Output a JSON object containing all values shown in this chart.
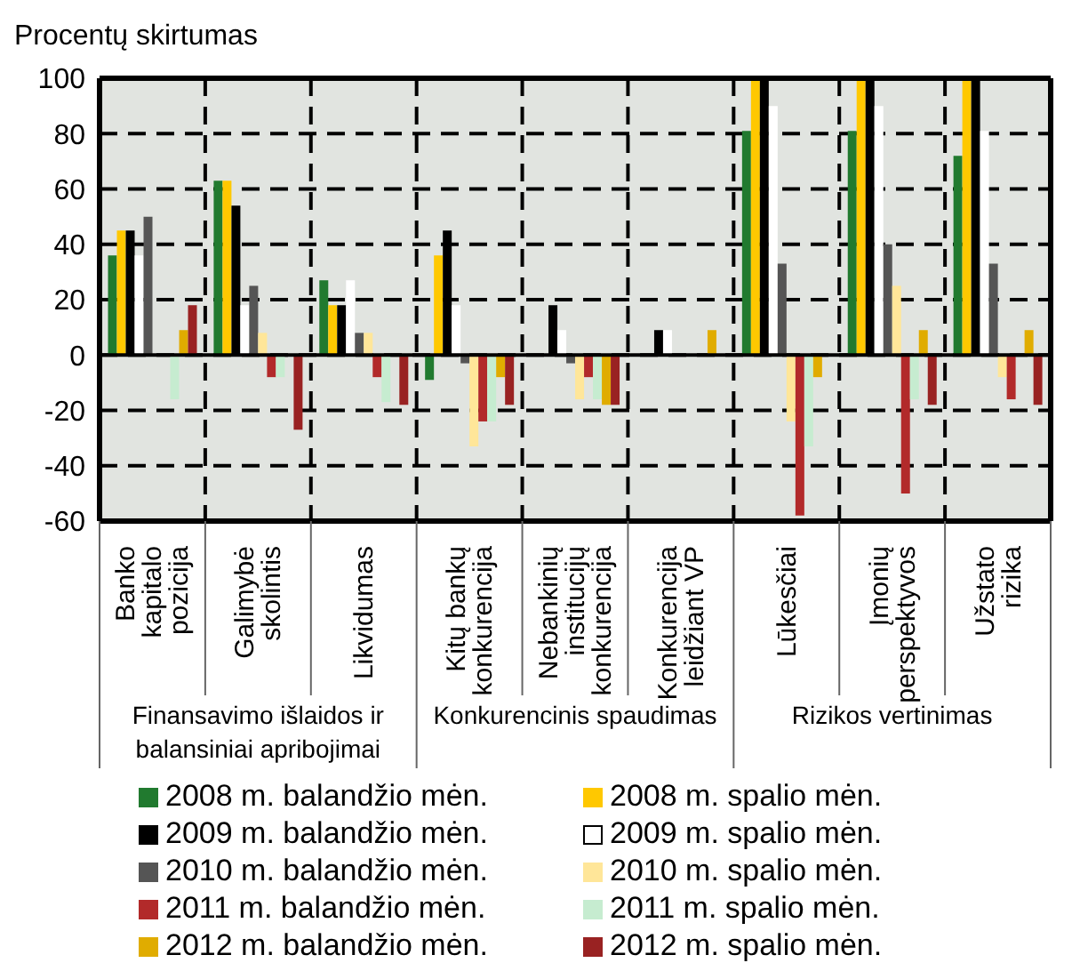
{
  "chart_data": {
    "type": "bar",
    "ylabel": "Procentų skirtumas",
    "categories": [
      "Banko kapitalo pozicija",
      "Galimybė skolintis",
      "Likvidumas",
      "Kitų bankų konkurencija",
      "Nebankinių institucijų konkurencija",
      "Konkurencija leidžiant VP",
      "Lūkesčiai",
      "Įmonių perspektyvos",
      "Užstato rizika"
    ],
    "series": [
      {
        "name": "2008 m. balandžio mėn.",
        "color": "#217a2f",
        "values": [
          36,
          63,
          27,
          -9,
          null,
          null,
          81,
          81,
          72
        ]
      },
      {
        "name": "2008 m. spalio mėn.",
        "color": "#ffc800",
        "values": [
          45,
          63,
          18,
          36,
          null,
          null,
          100,
          100,
          100
        ]
      },
      {
        "name": "2009 m. balandžio mėn.",
        "color": "#000000",
        "values": [
          45,
          54,
          18,
          45,
          18,
          9,
          100,
          100,
          100
        ]
      },
      {
        "name": "2009 m. spalio mėn.",
        "color": "#ffffff",
        "values": [
          36,
          18,
          27,
          18,
          9,
          9,
          90,
          90,
          81
        ]
      },
      {
        "name": "2010 m. balandžio mėn.",
        "color": "#555555",
        "values": [
          50,
          25,
          8,
          -3,
          -3,
          null,
          33,
          40,
          33
        ]
      },
      {
        "name": "2010 m. spalio mėn.",
        "color": "#ffe699",
        "values": [
          null,
          8,
          8,
          -33,
          -16,
          null,
          -24,
          25,
          -8
        ]
      },
      {
        "name": "2011 m. balandžio mėn.",
        "color": "#b22a2a",
        "values": [
          null,
          -8,
          -8,
          -24,
          -8,
          null,
          -58,
          -50,
          -16
        ]
      },
      {
        "name": "2011 m. spalio mėn.",
        "color": "#c6ecd0",
        "values": [
          -16,
          -8,
          -17,
          -24,
          -16,
          null,
          -33,
          -16,
          null
        ]
      },
      {
        "name": "2012 m. balandžio mėn.",
        "color": "#e0ac00",
        "values": [
          9,
          null,
          null,
          -8,
          -18,
          9,
          -8,
          9,
          9
        ]
      },
      {
        "name": "2012 m. spalio mėn.",
        "color": "#992222",
        "values": [
          18,
          -27,
          -18,
          -18,
          -18,
          null,
          null,
          -18,
          -18
        ]
      }
    ],
    "annotations": [
      "Finansavimo išlaidos ir balansiniai apribojimai",
      "Konkurencinis spaudimas",
      "Rizikos vertinimas"
    ],
    "ylim": [
      -60,
      100
    ],
    "yticks": [
      -60,
      -40,
      -20,
      0,
      20,
      40,
      60,
      80,
      100
    ],
    "ref_lines": [
      {
        "axis": "y",
        "value": 0,
        "color": "#000000"
      }
    ],
    "grid": true,
    "legend": "bottom"
  }
}
